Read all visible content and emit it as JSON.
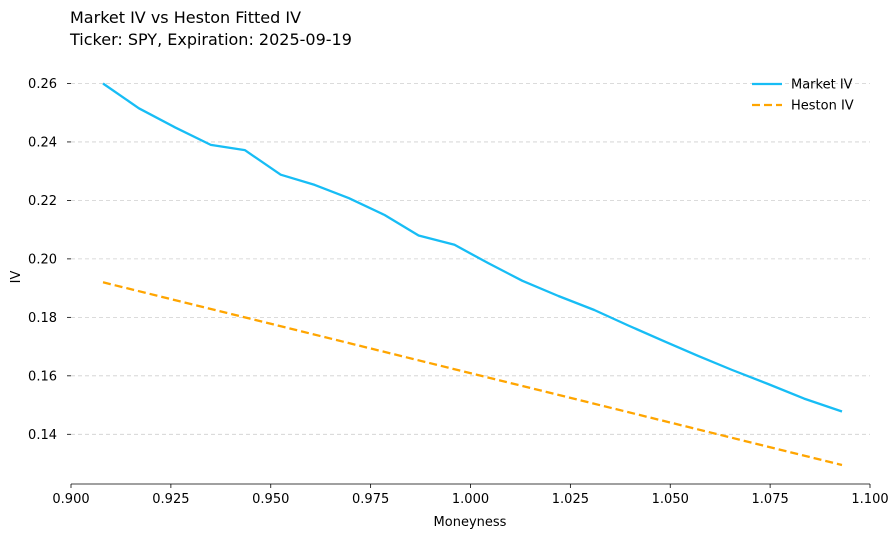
{
  "chart_data": {
    "type": "line",
    "title": "Market IV vs Heston Fitted IV",
    "subtitle": "Ticker: SPY, Expiration: 2025-09-19",
    "xlabel": "Moneyness",
    "ylabel": "IV",
    "xlim": [
      0.9,
      1.1
    ],
    "ylim": [
      0.123,
      0.267
    ],
    "xticks": [
      "0.900",
      "0.925",
      "0.950",
      "0.975",
      "1.000",
      "1.025",
      "1.050",
      "1.075",
      "1.100"
    ],
    "yticks": [
      "0.14",
      "0.16",
      "0.18",
      "0.20",
      "0.22",
      "0.24",
      "0.26"
    ],
    "grid": "horizontal-dashed",
    "legend_position": "top-right",
    "series": [
      {
        "name": "Market IV",
        "color": "#17bdf5",
        "style": "solid",
        "x": [
          0.908,
          0.917,
          0.926,
          0.935,
          0.9435,
          0.9525,
          0.961,
          0.9695,
          0.9785,
          0.987,
          0.996,
          1.0045,
          1.013,
          1.022,
          1.031,
          1.0395,
          1.0485,
          1.057,
          1.0655,
          1.0745,
          1.0835,
          1.093
        ],
        "values": [
          0.26,
          0.2515,
          0.245,
          0.239,
          0.2372,
          0.2288,
          0.2253,
          0.2208,
          0.215,
          0.208,
          0.2048,
          0.1985,
          0.1925,
          0.1873,
          0.1825,
          0.1772,
          0.1718,
          0.1668,
          0.162,
          0.1572,
          0.1522,
          0.1478
        ]
      },
      {
        "name": "Heston IV",
        "color": "#ffa500",
        "style": "dashed",
        "x": [
          0.908,
          1.093
        ],
        "values": [
          0.192,
          0.1295
        ]
      }
    ]
  }
}
